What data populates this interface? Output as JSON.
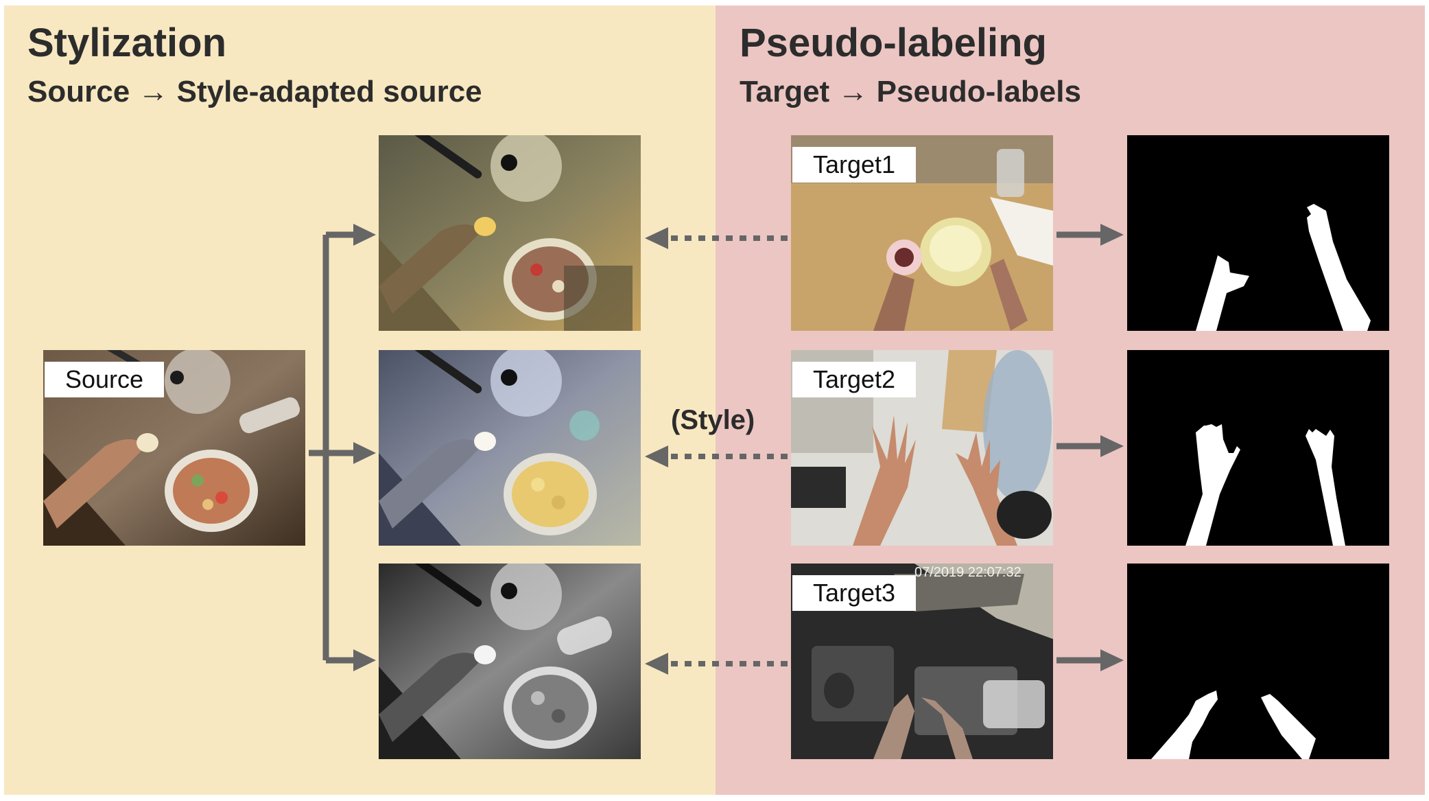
{
  "stylization": {
    "title": "Stylization",
    "subtitle": "Source → Style-adapted source",
    "source_label": "Source"
  },
  "pseudo_labeling": {
    "title": "Pseudo-labeling",
    "subtitle": "Target → Pseudo-labels",
    "target_labels": [
      "Target1",
      "Target2",
      "Target3"
    ],
    "style_label": "(Style)",
    "timestamp_overlay": "07/2019 22:07:32"
  },
  "colors": {
    "stylization_bg": "#f7e8c1",
    "pseudo_bg": "#ecc6c3",
    "arrow": "#666666",
    "heading_text": "#2c2c2c"
  }
}
